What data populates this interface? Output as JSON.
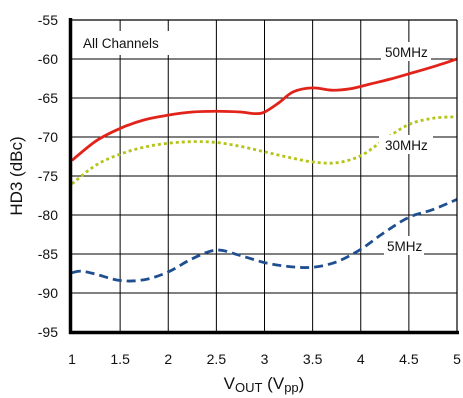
{
  "chart_data": {
    "type": "line",
    "title": "",
    "ylabel": "HD3 (dBc)",
    "xlabel": {
      "main": "V",
      "sub1": "OUT",
      "mid": " (V",
      "sub2": "pp",
      "end": ")"
    },
    "xlim": [
      1,
      5
    ],
    "ylim": [
      -95,
      -55
    ],
    "grid": true,
    "legend": "none",
    "xticks": [
      "1",
      "1.5",
      "2",
      "2.5",
      "3",
      "3.5",
      "4",
      "4.5",
      "5"
    ],
    "yticks": [
      "-55",
      "-60",
      "-65",
      "-70",
      "-75",
      "-80",
      "-85",
      "-90",
      "-95"
    ],
    "annotation": "All Channels",
    "series": [
      {
        "name": "50MHz",
        "color": "#e2231a",
        "style": "solid",
        "x": [
          1.0,
          1.25,
          1.5,
          1.75,
          2.0,
          2.25,
          2.5,
          2.75,
          2.9,
          3.0,
          3.15,
          3.3,
          3.5,
          3.7,
          3.9,
          4.1,
          4.3,
          4.5,
          4.75,
          5.0
        ],
        "y": [
          -73.0,
          -70.5,
          -68.9,
          -67.8,
          -67.2,
          -66.8,
          -66.7,
          -66.8,
          -67.0,
          -66.8,
          -65.6,
          -64.2,
          -63.7,
          -64.0,
          -63.8,
          -63.2,
          -62.6,
          -61.9,
          -61.0,
          -60.0
        ]
      },
      {
        "name": "30MHz",
        "color": "#b5c41a",
        "style": "dotted",
        "x": [
          1.0,
          1.25,
          1.5,
          1.75,
          2.0,
          2.25,
          2.5,
          2.75,
          3.0,
          3.25,
          3.5,
          3.75,
          4.0,
          4.25,
          4.5,
          4.75,
          5.0
        ],
        "y": [
          -76.0,
          -73.6,
          -72.2,
          -71.3,
          -70.8,
          -70.6,
          -70.7,
          -71.2,
          -71.9,
          -72.6,
          -73.2,
          -73.3,
          -72.4,
          -70.3,
          -68.4,
          -67.6,
          -67.4
        ]
      },
      {
        "name": "5MHz",
        "color": "#1f4f8f",
        "style": "dashed",
        "x": [
          1.0,
          1.1,
          1.25,
          1.5,
          1.75,
          2.0,
          2.25,
          2.5,
          2.75,
          3.0,
          3.25,
          3.5,
          3.75,
          4.0,
          4.25,
          4.5,
          4.75,
          5.0
        ],
        "y": [
          -87.4,
          -87.2,
          -87.6,
          -88.4,
          -88.3,
          -87.3,
          -85.6,
          -84.5,
          -85.2,
          -86.1,
          -86.6,
          -86.7,
          -86.0,
          -84.4,
          -82.2,
          -80.3,
          -79.3,
          -78.0
        ]
      }
    ]
  }
}
